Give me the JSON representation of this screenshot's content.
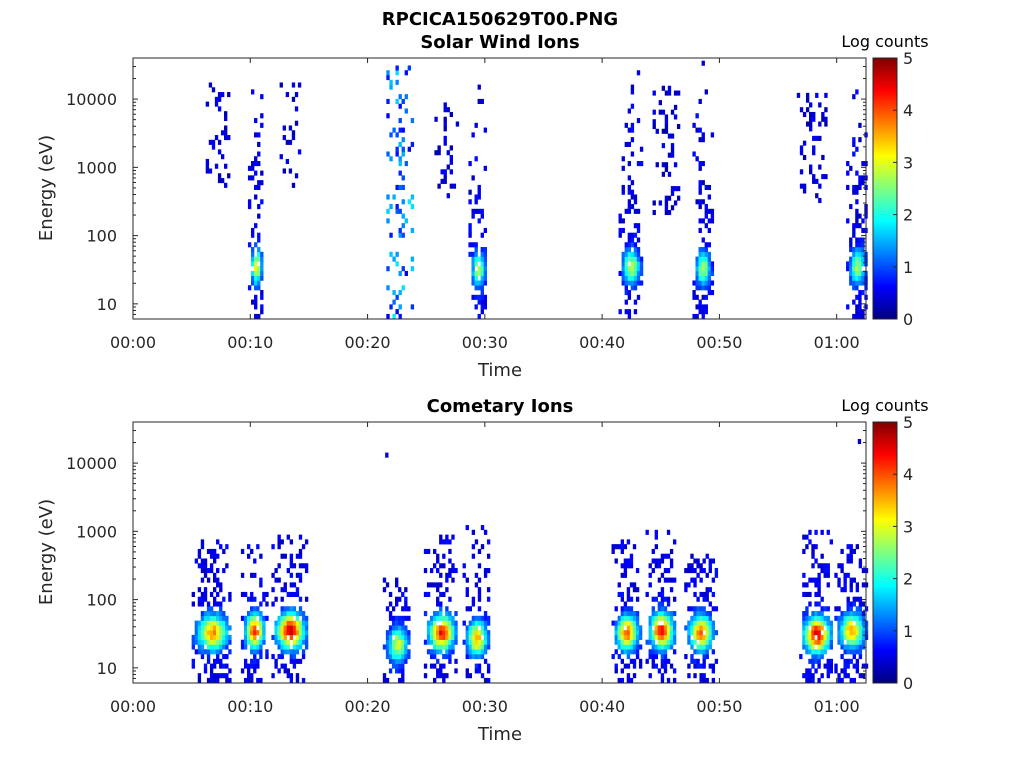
{
  "figure": {
    "title": "RPCICA150629T00.PNG"
  },
  "colorbar_colors": [
    "#00007f",
    "#0000ff",
    "#007fff",
    "#00ffff",
    "#7fff7f",
    "#ffff00",
    "#ff7f00",
    "#ff0000",
    "#7f0000"
  ],
  "chart_data": [
    {
      "type": "heatmap",
      "title": "Solar Wind Ions",
      "xlabel": "Time",
      "ylabel": "Energy (eV)",
      "x_unit": "minutes since 00:00",
      "xlim": [
        0,
        62.5
      ],
      "ylim": [
        6,
        40000
      ],
      "yscale": "log",
      "xticks": [
        0,
        10,
        20,
        30,
        40,
        50,
        60
      ],
      "xtick_labels": [
        "00:00",
        "00:10",
        "00:20",
        "00:30",
        "00:40",
        "00:50",
        "01:00"
      ],
      "yticks": [
        10,
        100,
        1000,
        10000
      ],
      "ytick_labels": [
        "10",
        "100",
        "1000",
        "10000"
      ],
      "colorbar": {
        "label": "Log counts",
        "range": [
          0,
          5
        ],
        "ticks": [
          "0",
          "1",
          "2",
          "3",
          "4",
          "5"
        ]
      },
      "bursts": [
        {
          "t_start": 9.8,
          "t_end": 11.0,
          "e_min": 6,
          "e_max": 16000,
          "peak_energy": 32,
          "peak_log_counts": 2.6
        },
        {
          "t_start": 6.2,
          "t_end": 8.2,
          "e_min": 500,
          "e_max": 15000,
          "peak_energy": 2000,
          "peak_log_counts": 0.6
        },
        {
          "t_start": 12.5,
          "t_end": 14.3,
          "e_min": 500,
          "e_max": 15000,
          "peak_energy": 2500,
          "peak_log_counts": 0.6
        },
        {
          "t_start": 21.6,
          "t_end": 23.8,
          "e_min": 6,
          "e_max": 30000,
          "peak_energy": 30,
          "peak_log_counts": 1.8
        },
        {
          "t_start": 25.7,
          "t_end": 27.6,
          "e_min": 300,
          "e_max": 8000,
          "peak_energy": 2000,
          "peak_log_counts": 0.6
        },
        {
          "t_start": 28.6,
          "t_end": 30.1,
          "e_min": 6,
          "e_max": 15000,
          "peak_energy": 30,
          "peak_log_counts": 2.2
        },
        {
          "t_start": 41.4,
          "t_end": 43.3,
          "e_min": 6,
          "e_max": 30000,
          "peak_energy": 32,
          "peak_log_counts": 2.4
        },
        {
          "t_start": 44.3,
          "t_end": 46.6,
          "e_min": 200,
          "e_max": 15000,
          "peak_energy": 2000,
          "peak_log_counts": 0.6
        },
        {
          "t_start": 47.7,
          "t_end": 49.3,
          "e_min": 6,
          "e_max": 35000,
          "peak_energy": 30,
          "peak_log_counts": 2.2
        },
        {
          "t_start": 56.6,
          "t_end": 59.3,
          "e_min": 300,
          "e_max": 12000,
          "peak_energy": 1500,
          "peak_log_counts": 0.6
        },
        {
          "t_start": 60.8,
          "t_end": 62.5,
          "e_min": 6,
          "e_max": 20000,
          "peak_energy": 32,
          "peak_log_counts": 2.2
        }
      ]
    },
    {
      "type": "heatmap",
      "title": "Cometary Ions",
      "xlabel": "Time",
      "ylabel": "Energy (eV)",
      "x_unit": "minutes since 00:00",
      "xlim": [
        0,
        62.5
      ],
      "ylim": [
        6,
        40000
      ],
      "yscale": "log",
      "xticks": [
        0,
        10,
        20,
        30,
        40,
        50,
        60
      ],
      "xtick_labels": [
        "00:00",
        "00:10",
        "00:20",
        "00:30",
        "00:40",
        "00:50",
        "01:00"
      ],
      "yticks": [
        10,
        100,
        1000,
        10000
      ],
      "ytick_labels": [
        "10",
        "100",
        "1000",
        "10000"
      ],
      "colorbar": {
        "label": "Log counts",
        "range": [
          0,
          5
        ],
        "ticks": [
          "0",
          "1",
          "2",
          "3",
          "4",
          "5"
        ]
      },
      "bursts": [
        {
          "t_start": 5.0,
          "t_end": 8.3,
          "e_min": 6,
          "e_max": 700,
          "peak_energy": 30,
          "peak_log_counts": 3.2
        },
        {
          "t_start": 9.2,
          "t_end": 11.3,
          "e_min": 6,
          "e_max": 700,
          "peak_energy": 32,
          "peak_log_counts": 3.6
        },
        {
          "t_start": 11.8,
          "t_end": 14.8,
          "e_min": 6,
          "e_max": 900,
          "peak_energy": 32,
          "peak_log_counts": 4.2
        },
        {
          "t_start": 21.3,
          "t_end": 23.6,
          "e_min": 6,
          "e_max": 200,
          "peak_energy": 20,
          "peak_log_counts": 2.4
        },
        {
          "t_start": 24.8,
          "t_end": 27.6,
          "e_min": 6,
          "e_max": 800,
          "peak_energy": 30,
          "peak_log_counts": 3.8
        },
        {
          "t_start": 28.1,
          "t_end": 30.3,
          "e_min": 6,
          "e_max": 1300,
          "peak_energy": 25,
          "peak_log_counts": 3.0
        },
        {
          "t_start": 40.8,
          "t_end": 43.2,
          "e_min": 6,
          "e_max": 700,
          "peak_energy": 30,
          "peak_log_counts": 3.4
        },
        {
          "t_start": 43.7,
          "t_end": 46.2,
          "e_min": 6,
          "e_max": 900,
          "peak_energy": 32,
          "peak_log_counts": 4.0
        },
        {
          "t_start": 47.0,
          "t_end": 49.6,
          "e_min": 6,
          "e_max": 500,
          "peak_energy": 30,
          "peak_log_counts": 3.4
        },
        {
          "t_start": 56.8,
          "t_end": 59.6,
          "e_min": 6,
          "e_max": 1200,
          "peak_energy": 28,
          "peak_log_counts": 4.2
        },
        {
          "t_start": 59.8,
          "t_end": 62.5,
          "e_min": 6,
          "e_max": 600,
          "peak_energy": 32,
          "peak_log_counts": 3.0
        }
      ],
      "isolated_points": [
        {
          "t": 21.5,
          "energy": 12000,
          "log_counts": 0.4
        },
        {
          "t": 61.8,
          "energy": 19000,
          "log_counts": 0.4
        }
      ]
    }
  ]
}
